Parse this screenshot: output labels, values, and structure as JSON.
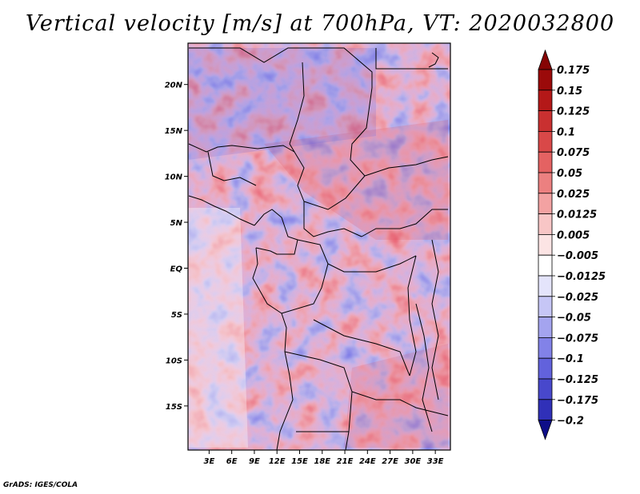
{
  "map": {
    "title": "Vertical velocity [m/s] at 700hPa, VT: 2020032800",
    "lat_labels": [
      {
        "lat": 20,
        "label": "20N"
      },
      {
        "lat": 15,
        "label": "15N"
      },
      {
        "lat": 10,
        "label": "10N"
      },
      {
        "lat": 5,
        "label": "5N"
      },
      {
        "lat": 0,
        "label": "EQ"
      },
      {
        "lat": -5,
        "label": "5S"
      },
      {
        "lat": -10,
        "label": "10S"
      },
      {
        "lat": -15,
        "label": "15S"
      }
    ],
    "lon_labels": [
      {
        "lon": 3,
        "label": "3E"
      },
      {
        "lon": 6,
        "label": "6E"
      },
      {
        "lon": 9,
        "label": "9E"
      },
      {
        "lon": 12,
        "label": "12E"
      },
      {
        "lon": 15,
        "label": "15E"
      },
      {
        "lon": 18,
        "label": "18E"
      },
      {
        "lon": 21,
        "label": "21E"
      },
      {
        "lon": 24,
        "label": "24E"
      },
      {
        "lon": 27,
        "label": "27E"
      },
      {
        "lon": 30,
        "label": "30E"
      },
      {
        "lon": 33,
        "label": "33E"
      }
    ],
    "lon_range": [
      0.2,
      35
    ],
    "lat_range": [
      -19.8,
      24.5
    ],
    "colorbar": {
      "levels": [
        {
          "label": "0.175",
          "color": "#9b0a0a"
        },
        {
          "label": "0.15",
          "color": "#b41818"
        },
        {
          "label": "0.125",
          "color": "#c93030"
        },
        {
          "label": "0.1",
          "color": "#d94848"
        },
        {
          "label": "0.075",
          "color": "#e46262"
        },
        {
          "label": "0.05",
          "color": "#ec8080"
        },
        {
          "label": "0.025",
          "color": "#f3a2a2"
        },
        {
          "label": "0.0125",
          "color": "#f8c6c6"
        },
        {
          "label": "0.005",
          "color": "#fce4e4"
        },
        {
          "label": "−0.005",
          "color": "#ffffff"
        },
        {
          "label": "−0.0125",
          "color": "#e4e4fb"
        },
        {
          "label": "−0.025",
          "color": "#c6c6f6"
        },
        {
          "label": "−0.05",
          "color": "#a4a4ef"
        },
        {
          "label": "−0.075",
          "color": "#8282e8"
        },
        {
          "label": "−0.1",
          "color": "#6262dc"
        },
        {
          "label": "−0.125",
          "color": "#4848cc"
        },
        {
          "label": "−0.175",
          "color": "#3030b8"
        },
        {
          "label": "−0.2",
          "color": "#1a1aa0"
        }
      ],
      "top_arrow_color": "#860404",
      "bottom_arrow_color": "#0e0e88"
    },
    "credit": "GrADS: IGES/COLA"
  }
}
